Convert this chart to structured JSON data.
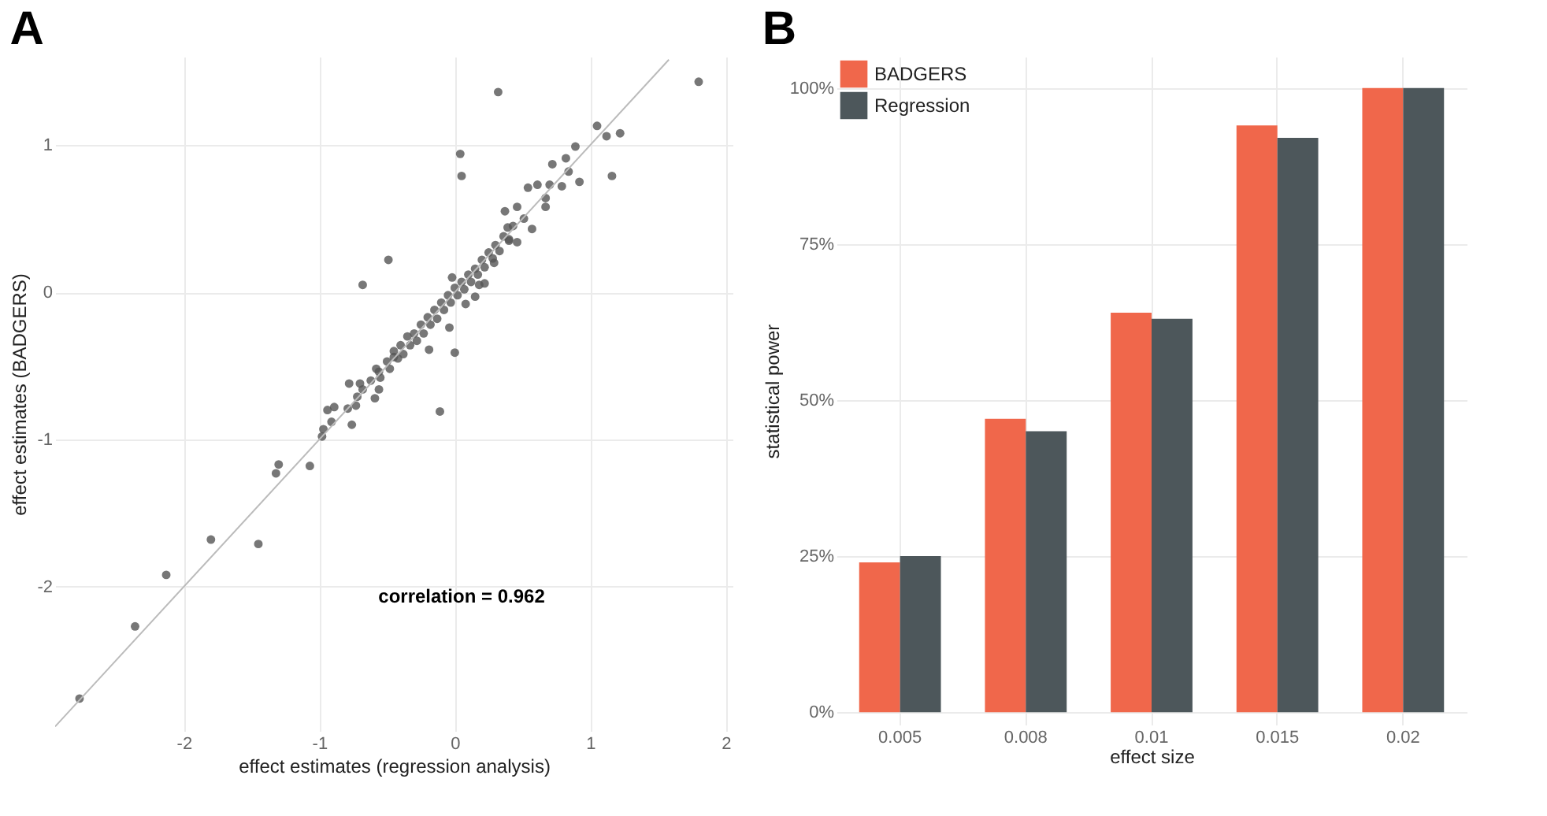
{
  "chart_data": [
    {
      "type": "scatter",
      "title": "A",
      "xlabel": "effect estimates (regression analysis)",
      "ylabel": "effect estimates (BADGERS)",
      "xlim": [
        -2.95,
        2.05
      ],
      "ylim": [
        -2.98,
        1.6
      ],
      "xticks": [
        -2,
        -1,
        0,
        1,
        2
      ],
      "yticks": [
        -2,
        -1,
        0,
        1
      ],
      "grid": true,
      "annotations": [
        "correlation = 0.962"
      ],
      "series": [
        {
          "type": "scatter",
          "marker": "circle",
          "color": "#555555",
          "x": [
            1.8,
            0.32,
            1.05,
            1.22,
            1.12,
            0.04,
            0.89,
            1.16,
            0.05,
            0.82,
            0.72,
            0.84,
            0.92,
            0.79,
            0.7,
            0.61,
            0.54,
            0.67,
            0.67,
            0.46,
            0.51,
            0.37,
            0.57,
            0.39,
            -0.49,
            -0.68,
            0.0,
            0.46,
            0.22,
            -2.77,
            -2.36,
            -2.13,
            -1.8,
            -1.45,
            -1.3,
            -1.32,
            -1.07,
            -0.98,
            -0.97,
            -0.91,
            -0.94,
            -0.89,
            -0.76,
            -0.79,
            -0.73,
            -0.59,
            -0.11,
            -0.72,
            -0.56,
            -0.78,
            -0.56,
            -0.45,
            -0.19,
            -0.04,
            0.15,
            0.29,
            0.4,
            -0.62,
            -0.58,
            -0.55,
            -0.5,
            -0.48,
            -0.45,
            -0.42,
            -0.4,
            -0.38,
            -0.35,
            -0.33,
            -0.3,
            -0.28,
            -0.25,
            -0.23,
            -0.2,
            -0.18,
            -0.15,
            -0.13,
            -0.1,
            -0.08,
            -0.05,
            -0.03,
            0.0,
            0.02,
            0.05,
            0.07,
            0.1,
            0.12,
            0.15,
            0.17,
            0.2,
            0.22,
            0.25,
            0.28,
            0.3,
            0.33,
            0.36,
            0.4,
            0.43,
            -0.68,
            -0.7,
            -0.02,
            0.08,
            0.18
          ],
          "values": [
            1.43,
            1.36,
            1.13,
            1.08,
            1.06,
            0.94,
            0.99,
            0.79,
            0.79,
            0.91,
            0.87,
            0.82,
            0.75,
            0.72,
            0.73,
            0.73,
            0.71,
            0.64,
            0.58,
            0.58,
            0.5,
            0.55,
            0.43,
            0.44,
            0.22,
            0.05,
            -0.41,
            0.34,
            0.06,
            -2.76,
            -2.27,
            -1.92,
            -1.68,
            -1.71,
            -1.17,
            -1.23,
            -1.18,
            -0.98,
            -0.93,
            -0.88,
            -0.8,
            -0.78,
            -0.9,
            -0.79,
            -0.77,
            -0.72,
            -0.81,
            -0.71,
            -0.66,
            -0.62,
            -0.54,
            -0.44,
            -0.39,
            -0.24,
            -0.03,
            0.2,
            0.35,
            -0.6,
            -0.52,
            -0.58,
            -0.47,
            -0.52,
            -0.4,
            -0.45,
            -0.36,
            -0.42,
            -0.3,
            -0.36,
            -0.28,
            -0.33,
            -0.22,
            -0.28,
            -0.17,
            -0.22,
            -0.12,
            -0.18,
            -0.07,
            -0.12,
            -0.02,
            -0.07,
            0.03,
            -0.02,
            0.07,
            0.02,
            0.12,
            0.07,
            0.16,
            0.12,
            0.22,
            0.17,
            0.27,
            0.23,
            0.32,
            0.28,
            0.38,
            0.36,
            0.45,
            -0.66,
            -0.62,
            0.1,
            -0.08,
            0.05
          ]
        },
        {
          "type": "line",
          "color": "#bbbbbb",
          "x": [
            -2.95,
            1.58
          ],
          "values": [
            -2.95,
            1.58
          ]
        }
      ]
    },
    {
      "type": "bar",
      "title": "B",
      "xlabel": "effect size",
      "ylabel": "statistical power",
      "categories": [
        "0.005",
        "0.008",
        "0.01",
        "0.015",
        "0.02"
      ],
      "ylim": [
        -2,
        105
      ],
      "yticks": [
        {
          "value": 0,
          "label": "0%"
        },
        {
          "value": 25,
          "label": "25%"
        },
        {
          "value": 50,
          "label": "50%"
        },
        {
          "value": 75,
          "label": "75%"
        },
        {
          "value": 100,
          "label": "100%"
        }
      ],
      "grid": true,
      "legend": "top left",
      "series": [
        {
          "name": "BADGERS",
          "color": "#f0674b",
          "values": [
            24,
            47,
            64,
            94,
            100
          ]
        },
        {
          "name": "Regression",
          "color": "#4d575b",
          "values": [
            25,
            45,
            63,
            92,
            100
          ]
        }
      ]
    }
  ]
}
